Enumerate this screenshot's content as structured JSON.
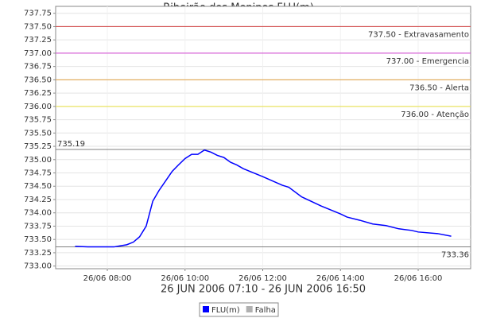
{
  "chart_data": {
    "type": "line",
    "title": "Ribeirão dos Meninos FLU(m)",
    "subtitle": "26 JUN 2006 07:10 - 26 JUN 2006 16:50",
    "x": [
      7.17,
      7.5,
      7.83,
      8.17,
      8.33,
      8.5,
      8.67,
      8.83,
      9.0,
      9.17,
      9.33,
      9.5,
      9.67,
      9.83,
      10.0,
      10.17,
      10.33,
      10.5,
      10.67,
      10.83,
      11.0,
      11.17,
      11.33,
      11.5,
      12.0,
      12.5,
      12.67,
      13.0,
      13.5,
      14.0,
      14.17,
      14.5,
      14.83,
      15.17,
      15.5,
      15.83,
      16.0,
      16.5,
      16.85
    ],
    "series": [
      {
        "name": "FLU(m)",
        "color": "#0000ff",
        "values": [
          733.37,
          733.36,
          733.36,
          733.36,
          733.38,
          733.4,
          733.45,
          733.55,
          733.75,
          734.22,
          734.42,
          734.6,
          734.78,
          734.9,
          735.02,
          735.1,
          735.1,
          735.18,
          735.14,
          735.08,
          735.04,
          734.95,
          734.9,
          734.83,
          734.68,
          734.52,
          734.48,
          734.3,
          734.13,
          733.98,
          733.92,
          733.86,
          733.79,
          733.76,
          733.7,
          733.67,
          733.64,
          733.61,
          733.56
        ]
      },
      {
        "name": "Falha",
        "color": "#b0b0b0",
        "values": [
          null,
          null,
          null,
          null,
          null,
          null,
          null,
          null,
          null,
          null,
          null,
          null,
          null,
          null,
          null,
          null,
          null,
          null,
          null,
          null,
          null,
          null,
          null,
          null,
          null,
          null,
          null,
          null,
          null,
          null,
          null,
          null,
          null,
          null,
          null,
          null,
          null,
          null,
          null
        ]
      }
    ],
    "reference_lines": [
      {
        "value": 737.5,
        "label": "737.50 - Extravasamento",
        "color": "#d04040",
        "side": "right"
      },
      {
        "value": 737.0,
        "label": "737.00 - Emergencia",
        "color": "#d040d0",
        "side": "right"
      },
      {
        "value": 736.5,
        "label": "736.50 - Alerta",
        "color": "#e0a040",
        "side": "right"
      },
      {
        "value": 736.0,
        "label": "736.00 - Atenção",
        "color": "#e8e040",
        "side": "right"
      },
      {
        "value": 735.19,
        "label": "735.19",
        "color": "#808080",
        "side": "left"
      },
      {
        "value": 733.36,
        "label": "733.36",
        "color": "#808080",
        "side": "right"
      }
    ],
    "xlim": [
      6.67,
      17.35
    ],
    "xticks": [
      {
        "value": 8,
        "label": "26/06 08:00"
      },
      {
        "value": 10,
        "label": "26/06 10:00"
      },
      {
        "value": 12,
        "label": "26/06 12:00"
      },
      {
        "value": 14,
        "label": "26/06 14:00"
      },
      {
        "value": 16,
        "label": "26/06 16:00"
      }
    ],
    "ylim": [
      732.95,
      737.88
    ],
    "yticks": [
      {
        "value": 733,
        "label": "733.00"
      },
      {
        "value": 733.25,
        "label": "733.25"
      },
      {
        "value": 733.5,
        "label": "733.50"
      },
      {
        "value": 733.75,
        "label": "733.75"
      },
      {
        "value": 734,
        "label": "734.00"
      },
      {
        "value": 734.25,
        "label": "734.25"
      },
      {
        "value": 734.5,
        "label": "734.50"
      },
      {
        "value": 734.75,
        "label": "734.75"
      },
      {
        "value": 735,
        "label": "735.00"
      },
      {
        "value": 735.25,
        "label": "735.25"
      },
      {
        "value": 735.5,
        "label": "735.50"
      },
      {
        "value": 735.75,
        "label": "735.75"
      },
      {
        "value": 736,
        "label": "736.00"
      },
      {
        "value": 736.25,
        "label": "736.25"
      },
      {
        "value": 736.5,
        "label": "736.50"
      },
      {
        "value": 736.75,
        "label": "736.75"
      },
      {
        "value": 737,
        "label": "737.00"
      },
      {
        "value": 737.25,
        "label": "737.25"
      },
      {
        "value": 737.5,
        "label": "737.50"
      },
      {
        "value": 737.75,
        "label": "737.75"
      }
    ],
    "grid": true
  }
}
